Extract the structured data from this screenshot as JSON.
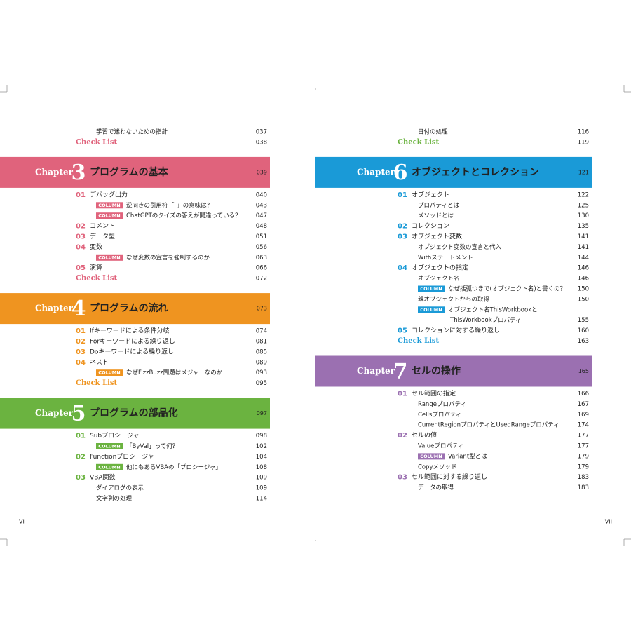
{
  "pages": [
    {
      "folio": "VI",
      "groups": [
        {
          "color": "#e0637c",
          "entries": [
            {
              "title": "学習で迷わないための指針",
              "page": "037"
            },
            {
              "style": "check",
              "title": "Check List",
              "page": "038"
            }
          ]
        },
        {
          "color": "#e0637c",
          "chapter": {
            "label": "Chapter",
            "number": "3",
            "title": "プログラムの基本",
            "page": "039"
          },
          "entries": [
            {
              "num": "01",
              "title": "デバッグ出力",
              "page": "040"
            },
            {
              "tag": "COLUMN",
              "title": "逆向きの引用符「`」の意味は？",
              "page": "043"
            },
            {
              "tag": "COLUMN",
              "title": "ChatGPTのクイズの答えが間違っている？",
              "page": "047"
            },
            {
              "num": "02",
              "title": "コメント",
              "page": "048"
            },
            {
              "num": "03",
              "title": "データ型",
              "page": "051"
            },
            {
              "num": "04",
              "title": "変数",
              "page": "056"
            },
            {
              "tag": "COLUMN",
              "title": "なぜ変数の宣言を強制するのか",
              "page": "063"
            },
            {
              "num": "05",
              "title": "演算",
              "page": "066"
            },
            {
              "style": "check",
              "title": "Check List",
              "page": "072"
            }
          ]
        },
        {
          "color": "#ef9420",
          "chapter": {
            "label": "Chapter",
            "number": "4",
            "title": "プログラムの流れ",
            "page": "073"
          },
          "entries": [
            {
              "num": "01",
              "title": "Ifキーワードによる条件分岐",
              "page": "074"
            },
            {
              "num": "02",
              "title": "Forキーワードによる繰り返し",
              "page": "081"
            },
            {
              "num": "03",
              "title": "Doキーワードによる繰り返し",
              "page": "085"
            },
            {
              "num": "04",
              "title": "ネスト",
              "page": "089"
            },
            {
              "tag": "COLUMN",
              "title": "なぜFizzBuzz問題はメジャーなのか",
              "page": "093"
            },
            {
              "style": "check",
              "title": "Check List",
              "page": "095"
            }
          ]
        },
        {
          "color": "#6bb340",
          "chapter": {
            "label": "Chapter",
            "number": "5",
            "title": "プログラムの部品化",
            "page": "097"
          },
          "entries": [
            {
              "num": "01",
              "title": "Subプロシージャ",
              "page": "098"
            },
            {
              "tag": "COLUMN",
              "title": "「ByVal」って何？",
              "page": "102"
            },
            {
              "num": "02",
              "title": "Functionプロシージャ",
              "page": "104"
            },
            {
              "tag": "COLUMN",
              "title": "他にもあるVBAの「プロシージャ」",
              "page": "108"
            },
            {
              "num": "03",
              "title": "VBA関数",
              "page": "109"
            },
            {
              "title": "ダイアログの表示",
              "page": "109"
            },
            {
              "title": "文字列の処理",
              "page": "114"
            }
          ]
        }
      ]
    },
    {
      "folio": "VII",
      "groups": [
        {
          "color": "#6bb340",
          "entries": [
            {
              "title": "日付の処理",
              "page": "116"
            },
            {
              "style": "check",
              "title": "Check List",
              "page": "119"
            }
          ]
        },
        {
          "color": "#1a9ad7",
          "chapter": {
            "label": "Chapter",
            "number": "6",
            "title": "オブジェクトとコレクション",
            "page": "121"
          },
          "entries": [
            {
              "num": "01",
              "title": "オブジェクト",
              "page": "122"
            },
            {
              "title": "プロパティとは",
              "page": "125"
            },
            {
              "title": "メソッドとは",
              "page": "130"
            },
            {
              "num": "02",
              "title": "コレクション",
              "page": "135"
            },
            {
              "num": "03",
              "title": "オブジェクト変数",
              "page": "141"
            },
            {
              "title": "オブジェクト変数の宣言と代入",
              "page": "141"
            },
            {
              "title": "Withステートメント",
              "page": "144"
            },
            {
              "num": "04",
              "title": "オブジェクトの指定",
              "page": "146"
            },
            {
              "title": "オブジェクト名",
              "page": "146"
            },
            {
              "tag": "COLUMN",
              "title": "なぜ括弧つきで(オブジェクト名)と書くの？",
              "page": "150"
            },
            {
              "title": "親オブジェクトからの取得",
              "page": "150"
            },
            {
              "tag": "COLUMN",
              "title": "オブジェクト名ThisWorkbookと",
              "title2": "ThisWorkbookプロパティ",
              "page": "155"
            },
            {
              "num": "05",
              "title": "コレクションに対する繰り返し",
              "page": "160"
            },
            {
              "style": "check",
              "title": "Check List",
              "page": "163"
            }
          ]
        },
        {
          "color": "#9b70b1",
          "chapter": {
            "label": "Chapter",
            "number": "7",
            "title": "セルの操作",
            "page": "165"
          },
          "entries": [
            {
              "num": "01",
              "title": "セル範囲の指定",
              "page": "166"
            },
            {
              "title": "Rangeプロパティ",
              "page": "167"
            },
            {
              "title": "Cellsプロパティ",
              "page": "169"
            },
            {
              "title": "CurrentRegionプロパティとUsedRangeプロパティ",
              "page": "174"
            },
            {
              "num": "02",
              "title": "セルの値",
              "page": "177"
            },
            {
              "title": "Valueプロパティ",
              "page": "177"
            },
            {
              "tag": "COLUMN",
              "title": "Variant型とは",
              "page": "179"
            },
            {
              "title": "Copyメソッド",
              "page": "179"
            },
            {
              "num": "03",
              "title": "セル範囲に対する繰り返し",
              "page": "183"
            },
            {
              "title": "データの取得",
              "page": "183"
            }
          ]
        }
      ]
    }
  ]
}
